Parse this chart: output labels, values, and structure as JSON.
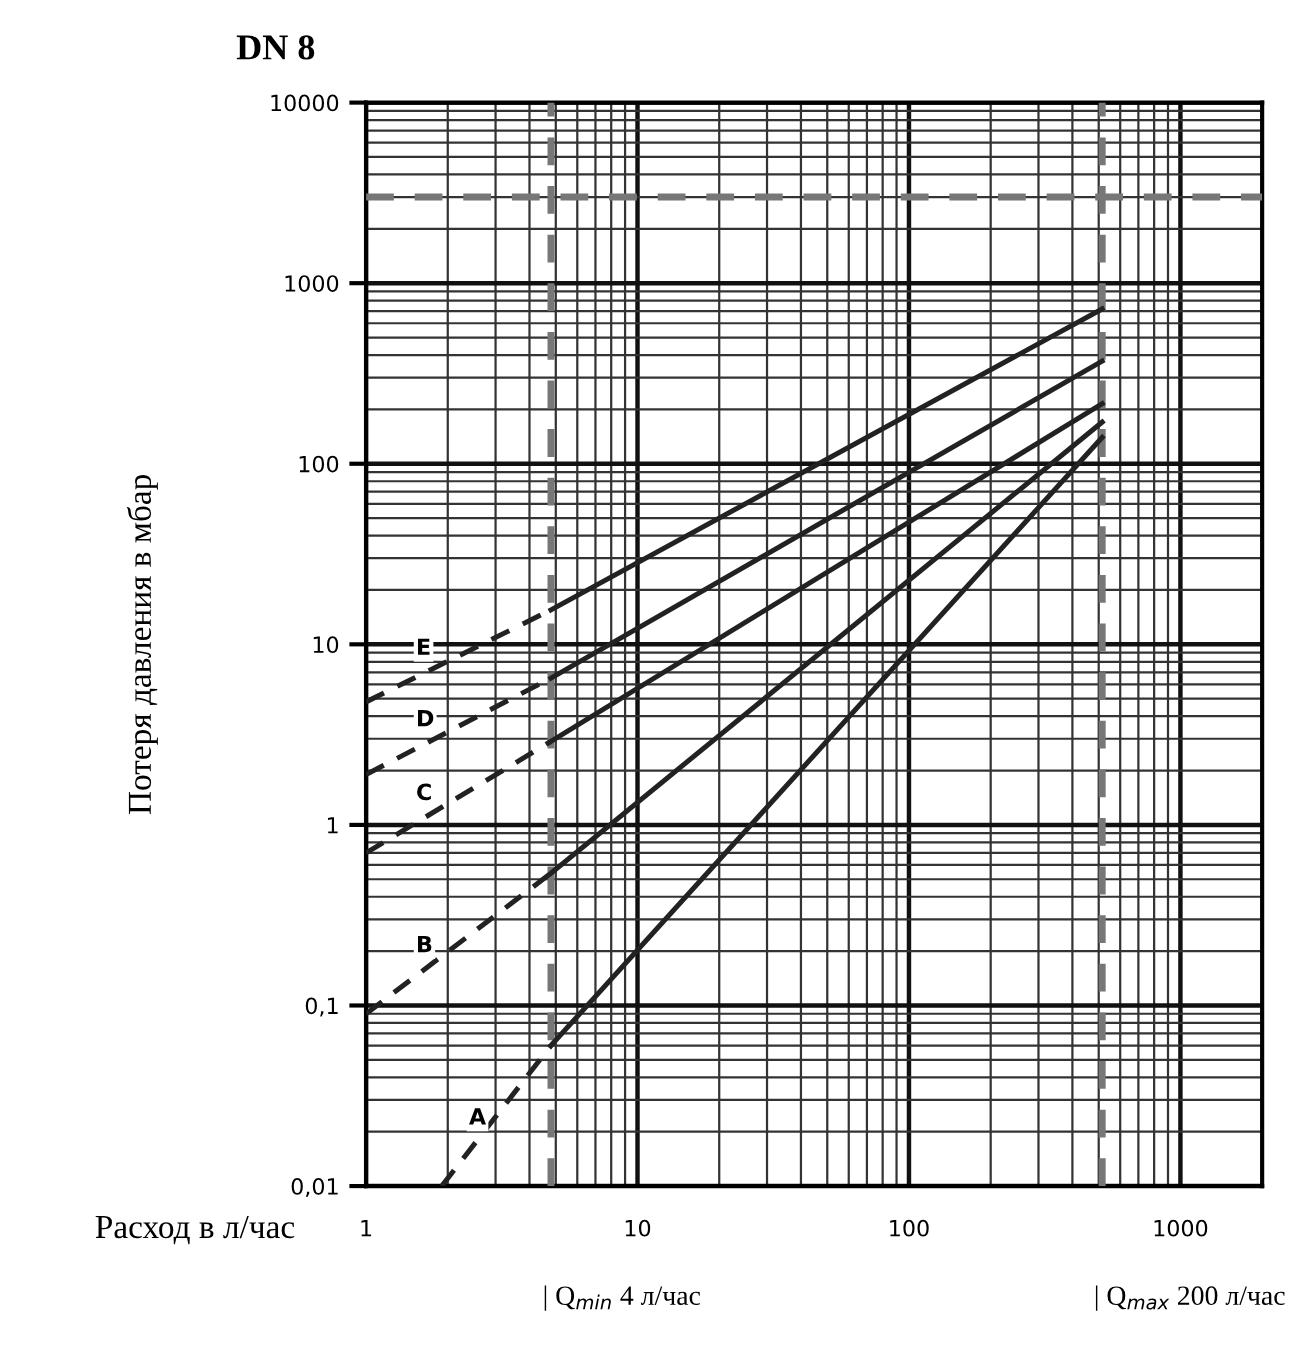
{
  "chart_data": {
    "type": "line",
    "title": "DN 8",
    "xlabel": "Расход в л/час",
    "ylabel": "Потеря давления в мбар",
    "log": "xy",
    "grid": true,
    "legend": false,
    "xlim": [
      1,
      2000
    ],
    "ylim": [
      0.01,
      10000
    ],
    "xticks": [
      1,
      10,
      100,
      1000
    ],
    "yticks": [
      {
        "value": 0.01,
        "label": "0,01"
      },
      {
        "value": 0.1,
        "label": "0,1"
      },
      1,
      10,
      100,
      1000,
      10000
    ],
    "series": [
      {
        "name": "E",
        "color": "#222222",
        "line_style": "dashed",
        "x": [
          1,
          4.8
        ],
        "values": [
          4.8,
          15.5
        ]
      },
      {
        "color": "#222222",
        "line_style": "solid",
        "x": [
          4.8,
          515
        ],
        "values": [
          15.5,
          720
        ]
      },
      {
        "name": "D",
        "color": "#222222",
        "line_style": "dashed",
        "x": [
          1,
          4.8
        ],
        "values": [
          1.9,
          6.5
        ]
      },
      {
        "color": "#222222",
        "line_style": "solid",
        "x": [
          4.8,
          515
        ],
        "values": [
          6.5,
          370
        ]
      },
      {
        "name": "C",
        "color": "#222222",
        "line_style": "dashed",
        "x": [
          1,
          4.8
        ],
        "values": [
          0.7,
          2.9
        ]
      },
      {
        "color": "#222222",
        "line_style": "solid",
        "x": [
          4.8,
          515
        ],
        "values": [
          2.9,
          215
        ]
      },
      {
        "name": "B",
        "color": "#222222",
        "line_style": "dashed",
        "x": [
          1,
          4.8
        ],
        "values": [
          0.09,
          0.54
        ]
      },
      {
        "color": "#222222",
        "line_style": "solid",
        "x": [
          4.8,
          515
        ],
        "values": [
          0.54,
          170
        ]
      },
      {
        "name": "A",
        "color": "#222222",
        "line_style": "dashed",
        "x": [
          1.9,
          4.8
        ],
        "values": [
          0.01,
          0.06
        ]
      },
      {
        "color": "#222222",
        "line_style": "solid",
        "x": [
          4.8,
          515
        ],
        "values": [
          0.06,
          140
        ]
      }
    ],
    "ref_lines": [
      {
        "axis": "y",
        "value": 3000,
        "color": "#777777",
        "line_style": "dashed"
      },
      {
        "axis": "x",
        "value": 4.8,
        "color": "#777777",
        "line_style": "dashed"
      },
      {
        "axis": "x",
        "value": 515,
        "color": "#777777",
        "line_style": "dashed"
      }
    ],
    "annotations": [
      "| Q$_{min}$ 4 л/час",
      "| Q$_{max}$ 200 л/час"
    ]
  }
}
